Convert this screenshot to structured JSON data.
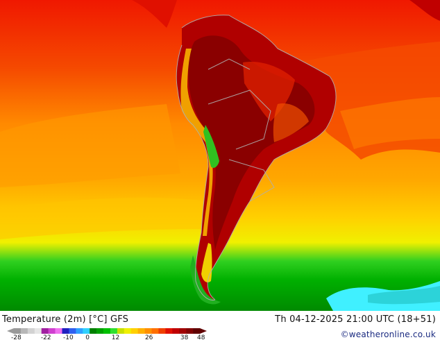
{
  "title": "Temperature (2m) [°C] GFS",
  "validity": "Th 04-12-2025 21:00 UTC (18+51)",
  "credit": "©weatheronline.co.uk",
  "legend": {
    "ticks": [
      "-28",
      "-22",
      "-10",
      "0",
      "12",
      "26",
      "38",
      "48"
    ],
    "colors": [
      "#9a9a9a",
      "#b7b7b7",
      "#d2d2d2",
      "#e6e6e6",
      "#a020a0",
      "#d040d0",
      "#f070f0",
      "#2020c0",
      "#3060f0",
      "#30a0ff",
      "#30d0ff",
      "#008000",
      "#00a000",
      "#00c000",
      "#30e030",
      "#c8e000",
      "#f0f000",
      "#ffd000",
      "#ffb000",
      "#ff9000",
      "#ff7000",
      "#f04000",
      "#e01000",
      "#c00000",
      "#a00000",
      "#800000",
      "#600000"
    ]
  },
  "colors": {
    "ocean_warm": "#f03000",
    "ocean_orange": "#ff9000",
    "ocean_yellow": "#ffd000",
    "cold_green": "#00a000",
    "land_hot": "#a00000",
    "coast": "#b0b0b0"
  }
}
